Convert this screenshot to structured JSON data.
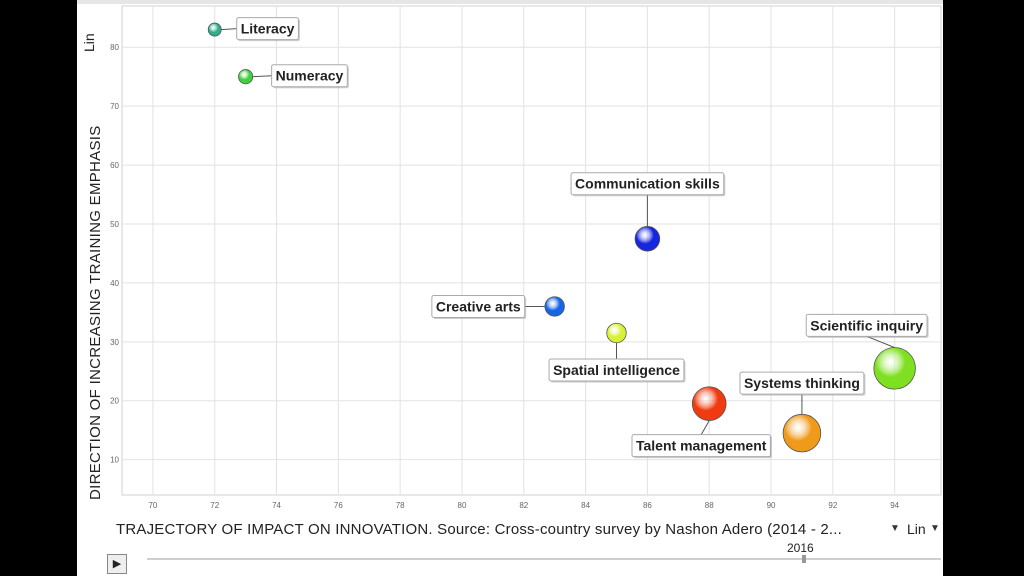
{
  "chart_data": {
    "type": "scatter",
    "title": "",
    "xlabel": "TRAJECTORY OF IMPACT ON INNOVATION.  Source: Cross-country survey by Nashon Adero (2014 - 2...",
    "ylabel": "DIRECTION OF INCREASING TRAINING EMPHASIS",
    "xlim": [
      69,
      95.5
    ],
    "ylim": [
      4,
      87
    ],
    "xticks": [
      70,
      72,
      74,
      76,
      78,
      80,
      82,
      84,
      86,
      88,
      90,
      92,
      94
    ],
    "yticks": [
      10,
      20,
      30,
      40,
      50,
      60,
      70,
      80
    ],
    "grid": true,
    "points": [
      {
        "label": "Literacy",
        "x": 72,
        "y": 83,
        "size": 1.0,
        "color": "#2bb08a"
      },
      {
        "label": "Numeracy",
        "x": 73,
        "y": 75,
        "size": 1.1,
        "color": "#3fd23f"
      },
      {
        "label": "Communication skills",
        "x": 86,
        "y": 47.5,
        "size": 1.9,
        "color": "#1525e0"
      },
      {
        "label": "Creative arts",
        "x": 83,
        "y": 36,
        "size": 1.5,
        "color": "#1565e8"
      },
      {
        "label": "Spatial intelligence",
        "x": 85,
        "y": 31.5,
        "size": 1.5,
        "color": "#d8f035"
      },
      {
        "label": "Scientific inquiry",
        "x": 94,
        "y": 25.5,
        "size": 3.2,
        "color": "#7ee020"
      },
      {
        "label": "Systems thinking",
        "x": 91,
        "y": 14.5,
        "size": 2.9,
        "color": "#f09a1a"
      },
      {
        "label": "Talent management",
        "x": 88,
        "y": 19.5,
        "size": 2.6,
        "color": "#f03a10"
      }
    ]
  },
  "controls": {
    "y_scale": "Lin",
    "x_scale": "Lin",
    "year": "2016"
  }
}
